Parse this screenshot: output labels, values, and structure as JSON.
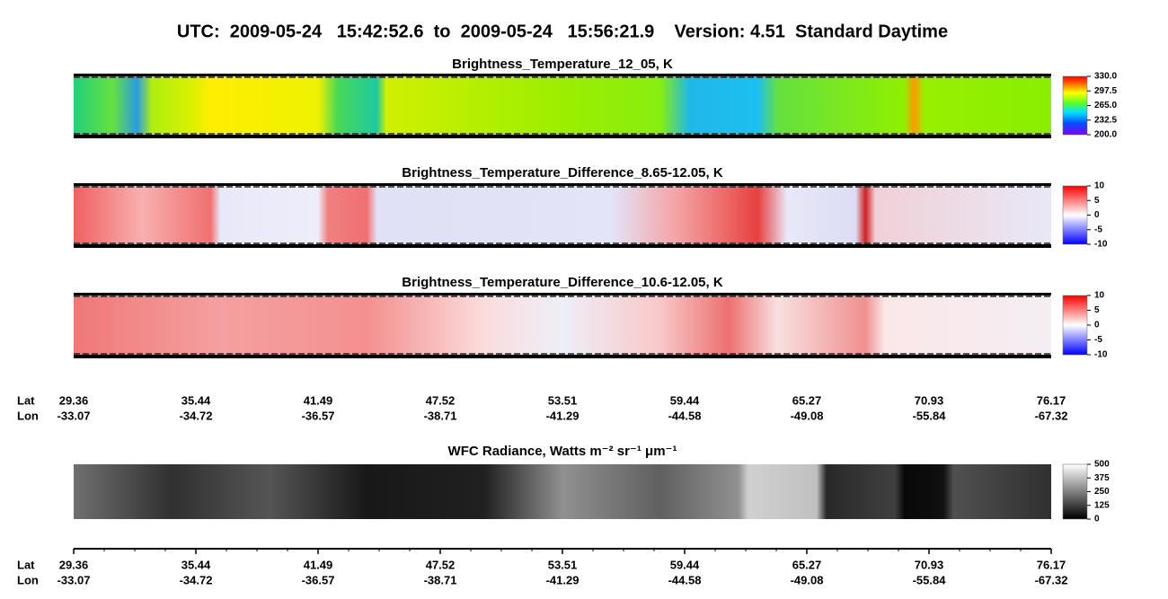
{
  "header": {
    "title": "UTC:  2009-05-24   15:42:52.6  to  2009-05-24   15:56:21.9    Version: 4.51  Standard Daytime"
  },
  "chart_data": [
    {
      "type": "heatmap",
      "title": "Brightness_Temperature_12_05, K",
      "colorscale": "rainbow",
      "zlim": [
        200,
        330
      ],
      "zticks": [
        {
          "value": 200,
          "label": "200.0"
        },
        {
          "value": 232.5,
          "label": "232.5"
        },
        {
          "value": 265,
          "label": "265.0"
        },
        {
          "value": 297.5,
          "label": "297.5"
        },
        {
          "value": 330,
          "label": "330.0"
        }
      ]
    },
    {
      "type": "heatmap",
      "title": "Brightness_Temperature_Difference_8.65-12.05, K",
      "colorscale": "bwr",
      "zlim": [
        -10,
        10
      ],
      "zticks": [
        -10,
        -5,
        0,
        5,
        10
      ]
    },
    {
      "type": "heatmap",
      "title": "Brightness_Temperature_Difference_10.6-12.05, K",
      "colorscale": "bwr",
      "zlim": [
        -10,
        10
      ],
      "zticks": [
        -10,
        -5,
        0,
        5,
        10
      ]
    },
    {
      "type": "heatmap",
      "title": "WFC Radiance, Watts m⁻² sr⁻¹ μm⁻¹",
      "colorscale": "gray",
      "zlim": [
        0,
        500
      ],
      "zticks": [
        0,
        125,
        250,
        375,
        500
      ]
    }
  ],
  "track_axis": {
    "lat_label": "Lat",
    "lon_label": "Lon",
    "lat": [
      "29.36",
      "35.44",
      "41.49",
      "47.52",
      "53.51",
      "59.44",
      "65.27",
      "70.93",
      "76.17"
    ],
    "lon": [
      "-33.07",
      "-34.72",
      "-36.57",
      "-38.71",
      "-41.29",
      "-44.58",
      "-49.08",
      "-55.84",
      "-67.32"
    ]
  }
}
